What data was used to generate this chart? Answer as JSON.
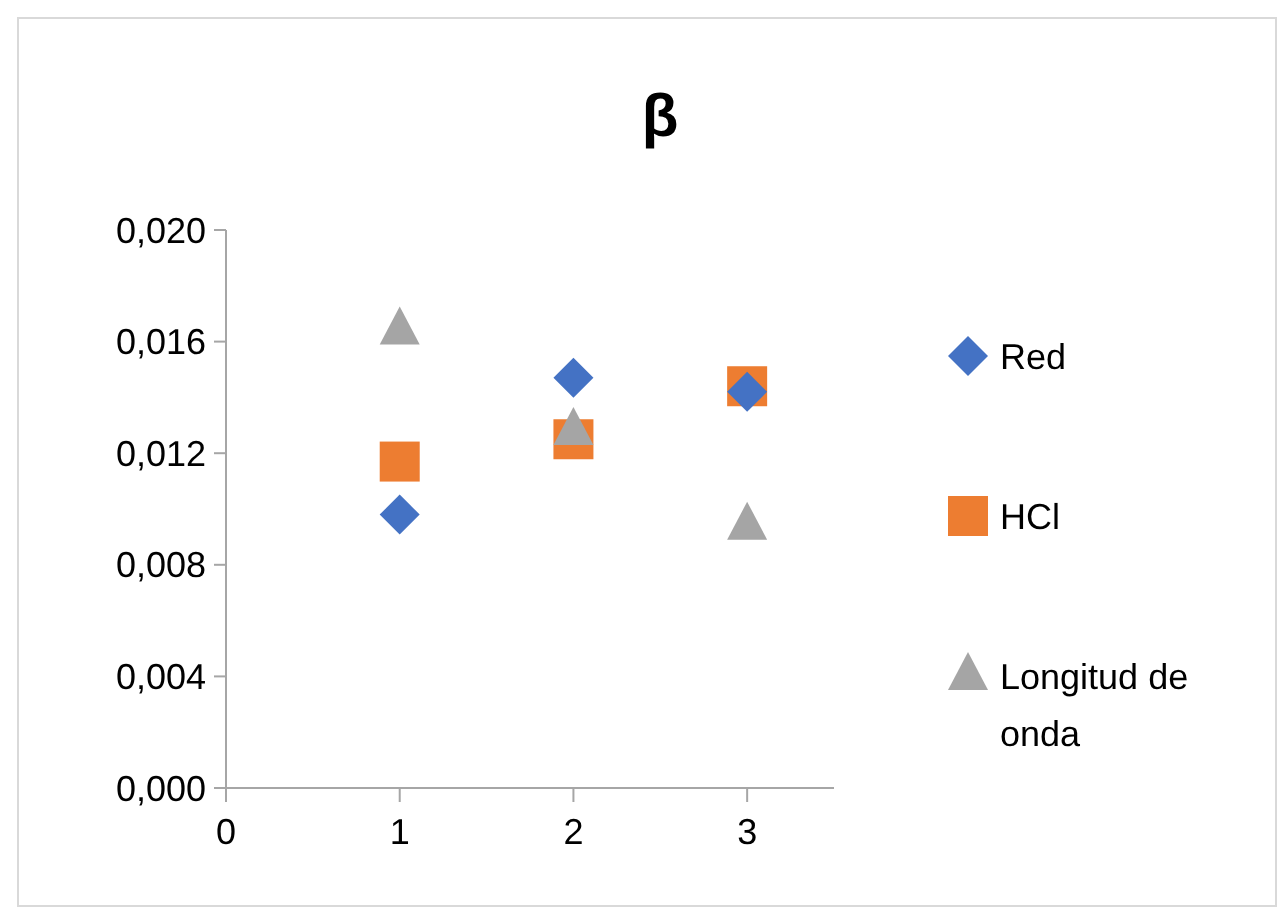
{
  "chart_data": {
    "type": "scatter",
    "title": "β",
    "x": [
      1,
      2,
      3
    ],
    "series": [
      {
        "name": "Red",
        "color": "#4472c4",
        "marker": "diamond",
        "values": [
          0.0098,
          0.0147,
          0.0142
        ]
      },
      {
        "name": "HCl",
        "color": "#ed7d31",
        "marker": "square",
        "values": [
          0.0117,
          0.0125,
          0.0144
        ]
      },
      {
        "name": "Longitud de onda",
        "color": "#a5a5a5",
        "marker": "triangle",
        "values": [
          0.0164,
          0.0128,
          0.0094
        ]
      }
    ],
    "xlim": [
      0,
      3.5
    ],
    "xticks": [
      0,
      1,
      2,
      3
    ],
    "ylim": [
      0,
      0.02
    ],
    "yticks": [
      {
        "value": 0,
        "label": "0,000"
      },
      {
        "value": 0.004,
        "label": "0,004"
      },
      {
        "value": 0.008,
        "label": "0,008"
      },
      {
        "value": 0.012,
        "label": "0,012"
      },
      {
        "value": 0.016,
        "label": "0,016"
      },
      {
        "value": 0.02,
        "label": "0,020"
      }
    ],
    "grid": false,
    "legend": "right"
  }
}
